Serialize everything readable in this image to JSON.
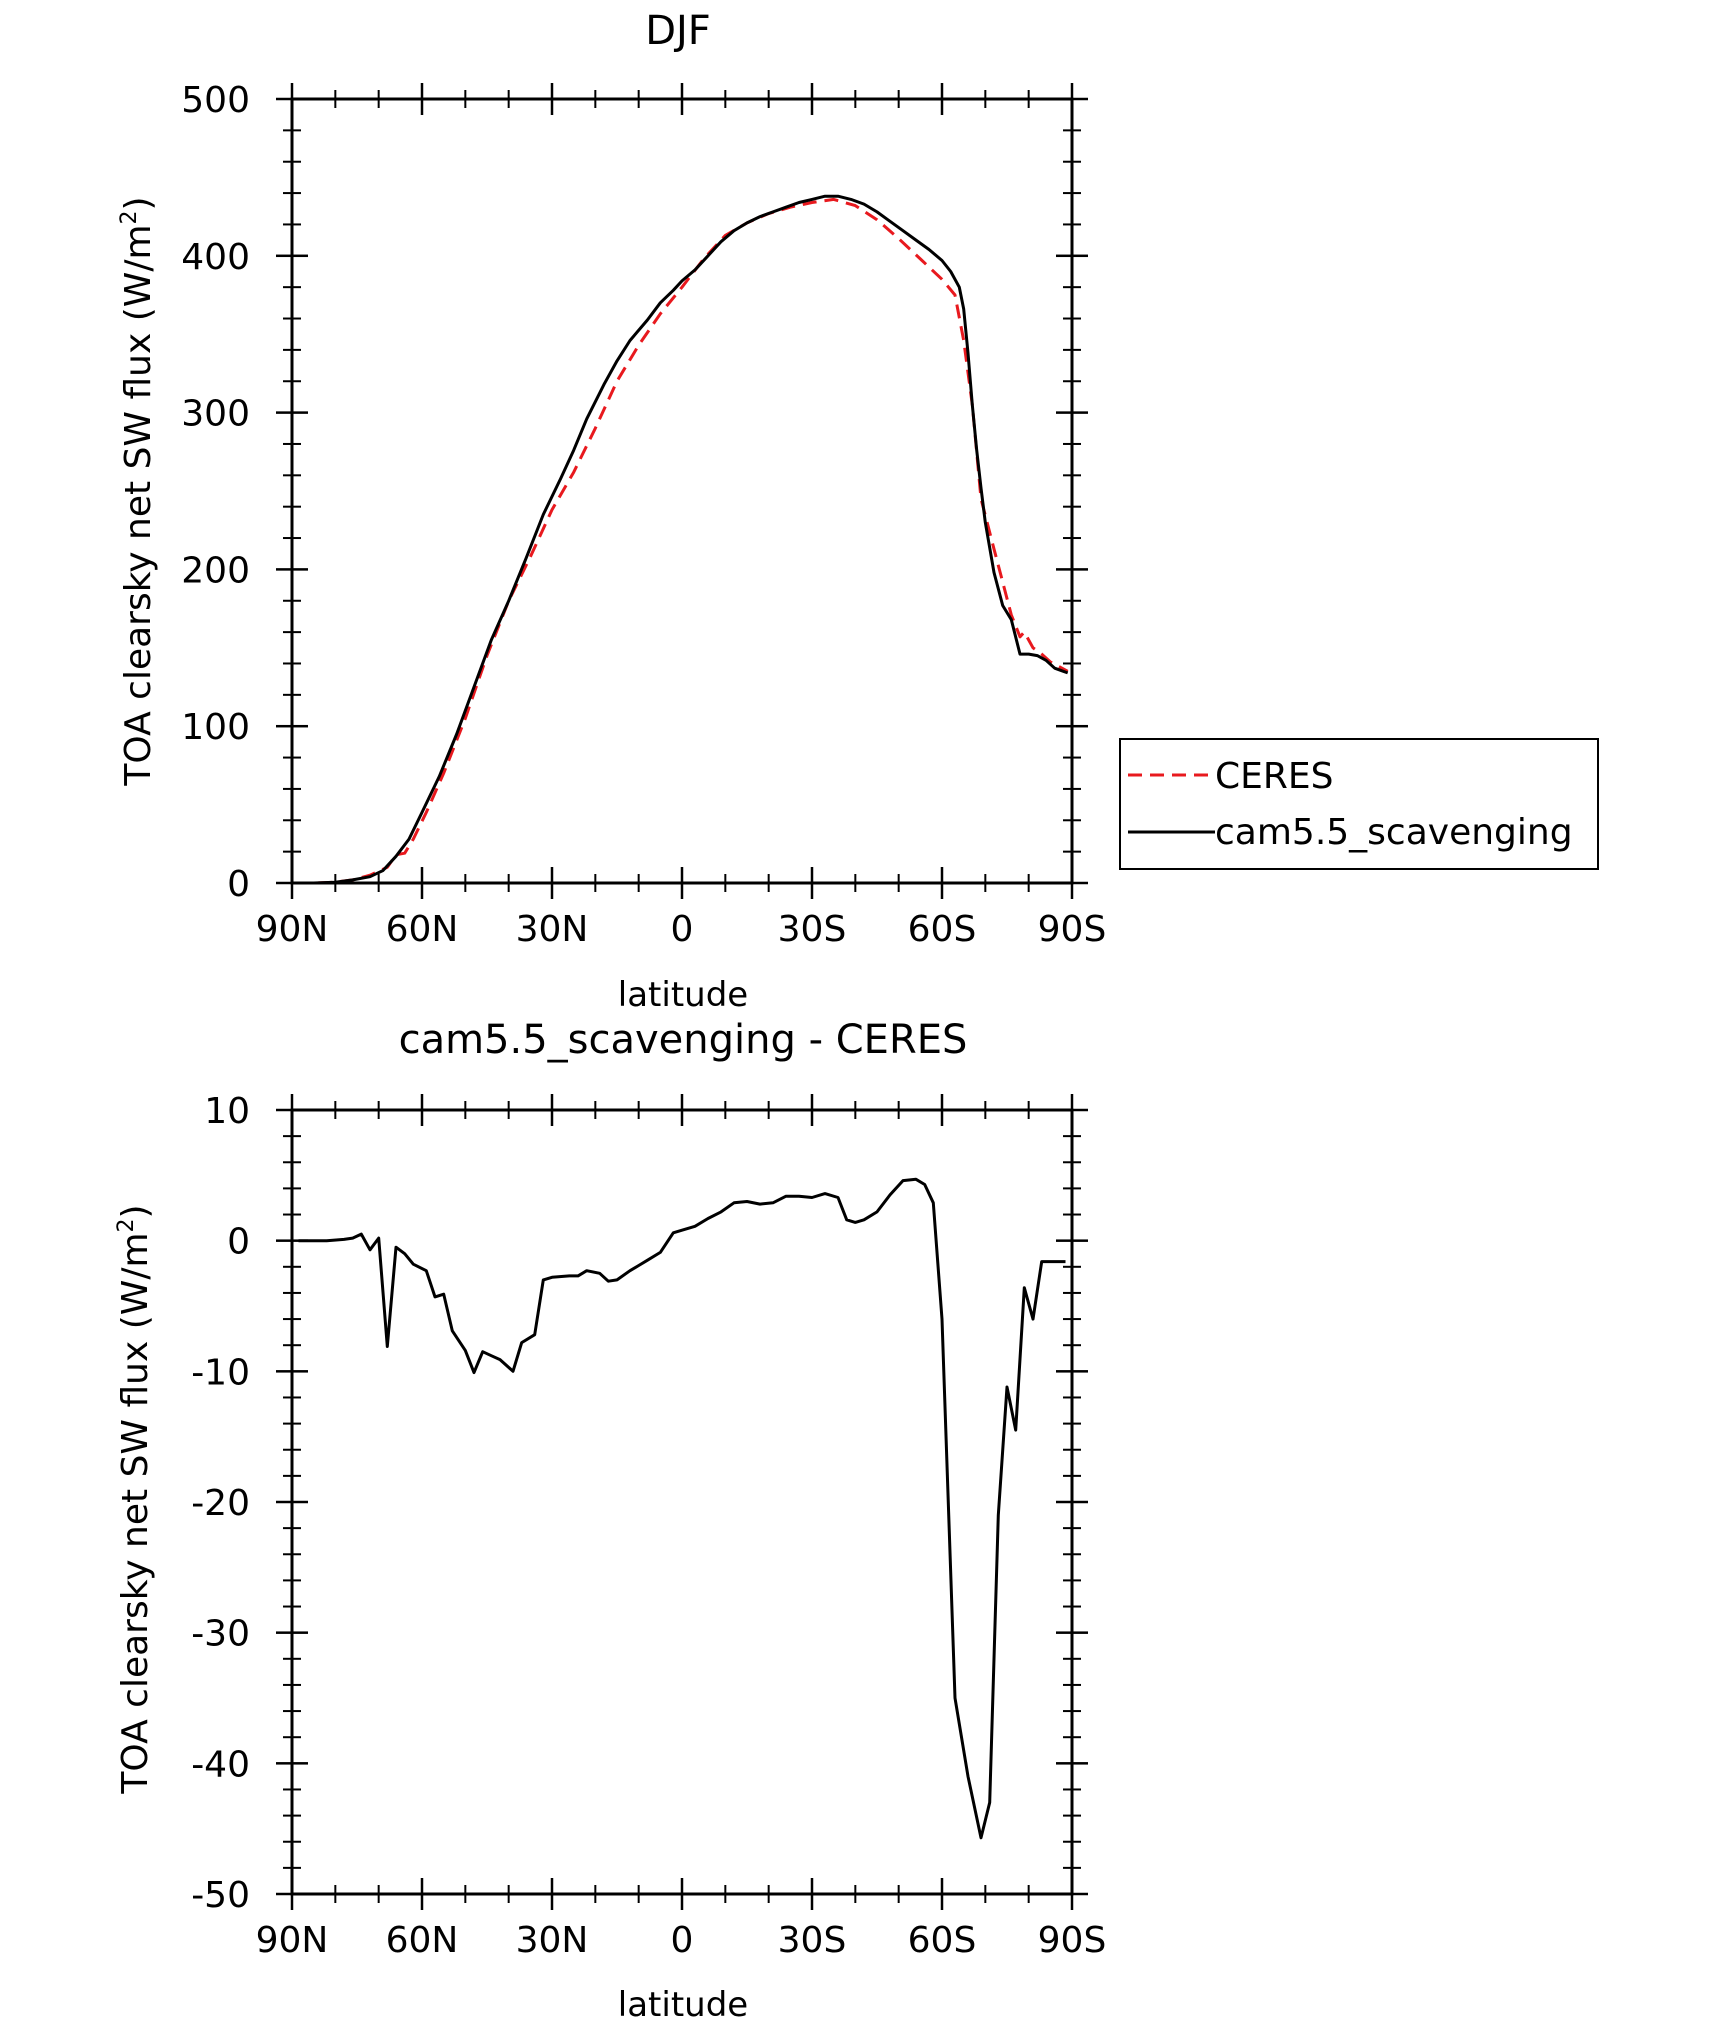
{
  "chart_data": [
    {
      "type": "line",
      "title": "DJF",
      "xlabel": "latitude",
      "ylabel": "TOA clearsky net SW flux (W/m²)",
      "ylabel_main": "TOA clearsky net SW flux (W/m",
      "ylabel_sup": "2",
      "ylabel_tail": ")",
      "xlim": [
        90,
        -90
      ],
      "ylim": [
        0,
        500
      ],
      "x_ticks": [
        {
          "value": 90,
          "label": "90N"
        },
        {
          "value": 60,
          "label": "60N"
        },
        {
          "value": 30,
          "label": "30N"
        },
        {
          "value": 0,
          "label": "0"
        },
        {
          "value": -30,
          "label": "30S"
        },
        {
          "value": -60,
          "label": "60S"
        },
        {
          "value": -90,
          "label": "90S"
        }
      ],
      "y_ticks": [
        {
          "value": 0,
          "label": "0"
        },
        {
          "value": 100,
          "label": "100"
        },
        {
          "value": 200,
          "label": "200"
        },
        {
          "value": 300,
          "label": "300"
        },
        {
          "value": 400,
          "label": "400"
        },
        {
          "value": 500,
          "label": "500"
        }
      ],
      "grid": false,
      "legend_position": "right",
      "series": [
        {
          "name": "CERES",
          "color": "#e8191e",
          "dash": "dashed",
          "x": [
            89,
            85,
            80,
            76,
            72,
            68,
            66,
            64,
            62,
            59,
            55,
            50,
            45,
            40,
            35,
            30,
            25,
            20,
            15,
            10,
            5,
            0,
            -5,
            -10,
            -15,
            -20,
            -25,
            -30,
            -35,
            -40,
            -45,
            -50,
            -55,
            -60,
            -63,
            -65,
            -67,
            -69,
            -72,
            -76,
            -78,
            -79,
            -81,
            -83,
            -85,
            -87,
            -89
          ],
          "y": [
            0,
            0,
            0.5,
            2,
            5,
            10,
            18,
            19,
            28,
            45,
            70,
            105,
            145,
            180,
            208,
            238,
            262,
            290,
            320,
            343,
            363,
            380,
            398,
            413,
            421,
            427,
            431,
            434,
            436,
            432,
            423,
            411,
            398,
            385,
            375,
            346,
            305,
            245,
            213,
            171,
            157,
            160,
            150,
            146,
            141,
            138,
            135
          ]
        },
        {
          "name": "cam5.5_scavenging",
          "color": "#000000",
          "dash": "solid",
          "x": [
            89,
            85,
            80,
            76,
            72,
            69,
            66,
            63,
            60,
            56,
            52,
            48,
            44,
            40,
            36,
            32,
            28,
            25,
            22,
            18,
            15,
            12,
            8,
            5,
            2,
            0,
            -3,
            -6,
            -9,
            -12,
            -15,
            -18,
            -21,
            -24,
            -27,
            -30,
            -33,
            -36,
            -39,
            -42,
            -45,
            -48,
            -51,
            -54,
            -57,
            -60,
            -62,
            -64,
            -65,
            -66,
            -67,
            -68,
            -69,
            -70,
            -72,
            -74,
            -76,
            -78,
            -80,
            -82,
            -84,
            -86,
            -88,
            -89
          ],
          "y": [
            0,
            0,
            0.5,
            2,
            4,
            8,
            17,
            28,
            45,
            68,
            95,
            125,
            155,
            180,
            207,
            235,
            258,
            276,
            296,
            318,
            333,
            346,
            359,
            370,
            378,
            384,
            391,
            400,
            409,
            416,
            421,
            425,
            428,
            431,
            434,
            436,
            438,
            438,
            436,
            433,
            428,
            422,
            416,
            410,
            404,
            397,
            390,
            380,
            366,
            338,
            305,
            276,
            252,
            230,
            198,
            177,
            168,
            146,
            146,
            145,
            142,
            137,
            135,
            134
          ]
        }
      ]
    },
    {
      "type": "line",
      "title": "cam5.5_scavenging - CERES",
      "xlabel": "latitude",
      "ylabel": "TOA clearsky net SW flux (W/m²)",
      "ylabel_main": "TOA clearsky net SW flux (W/m",
      "ylabel_sup": "2",
      "ylabel_tail": ")",
      "xlim": [
        90,
        -90
      ],
      "ylim": [
        -50,
        10
      ],
      "x_ticks": [
        {
          "value": 90,
          "label": "90N"
        },
        {
          "value": 60,
          "label": "60N"
        },
        {
          "value": 30,
          "label": "30N"
        },
        {
          "value": 0,
          "label": "0"
        },
        {
          "value": -30,
          "label": "30S"
        },
        {
          "value": -60,
          "label": "60S"
        },
        {
          "value": -90,
          "label": "90S"
        }
      ],
      "y_ticks": [
        {
          "value": 10,
          "label": "10"
        },
        {
          "value": 0,
          "label": "0"
        },
        {
          "value": -10,
          "label": "-10"
        },
        {
          "value": -20,
          "label": "-20"
        },
        {
          "value": -30,
          "label": "-30"
        },
        {
          "value": -40,
          "label": "-40"
        },
        {
          "value": -50,
          "label": "-50"
        }
      ],
      "grid": false,
      "series": [
        {
          "name": "",
          "color": "#000000",
          "dash": "solid",
          "x": [
            88.5,
            86,
            82,
            78,
            76,
            74,
            72,
            70,
            68,
            66,
            64,
            62,
            59,
            57,
            55,
            53,
            50,
            48,
            46,
            44,
            42,
            39,
            37,
            34,
            32,
            30,
            26,
            24,
            22,
            19,
            17,
            15,
            12,
            10,
            8,
            5,
            2,
            0,
            -3,
            -6,
            -9,
            -12,
            -15,
            -18,
            -21,
            -24,
            -27,
            -30,
            -33,
            -36,
            -38,
            -40,
            -42,
            -45,
            -48,
            -51,
            -54,
            -56,
            -58,
            -60,
            -63,
            -66,
            -69,
            -71,
            -73,
            -75,
            -77,
            -79,
            -81,
            -83,
            -86,
            -88.5
          ],
          "y": [
            0,
            0,
            0,
            0.1,
            0.2,
            0.5,
            -0.7,
            0.2,
            -8.1,
            -0.5,
            -1.0,
            -1.8,
            -2.3,
            -4.3,
            -4.1,
            -6.9,
            -8.4,
            -10.1,
            -8.5,
            -8.8,
            -9.1,
            -10.0,
            -7.8,
            -7.2,
            -3.0,
            -2.8,
            -2.7,
            -2.7,
            -2.3,
            -2.5,
            -3.1,
            -3.0,
            -2.3,
            -1.9,
            -1.5,
            -0.9,
            0.6,
            0.8,
            1.1,
            1.7,
            2.2,
            2.9,
            3.0,
            2.8,
            2.9,
            3.4,
            3.4,
            3.3,
            3.6,
            3.3,
            1.6,
            1.4,
            1.6,
            2.2,
            3.5,
            4.6,
            4.7,
            4.3,
            2.9,
            -6.0,
            -35.0,
            -41.0,
            -45.7,
            -43.0,
            -21.0,
            -11.2,
            -14.5,
            -3.6,
            -6.0,
            -1.6,
            -1.6,
            -1.6
          ]
        }
      ]
    }
  ]
}
